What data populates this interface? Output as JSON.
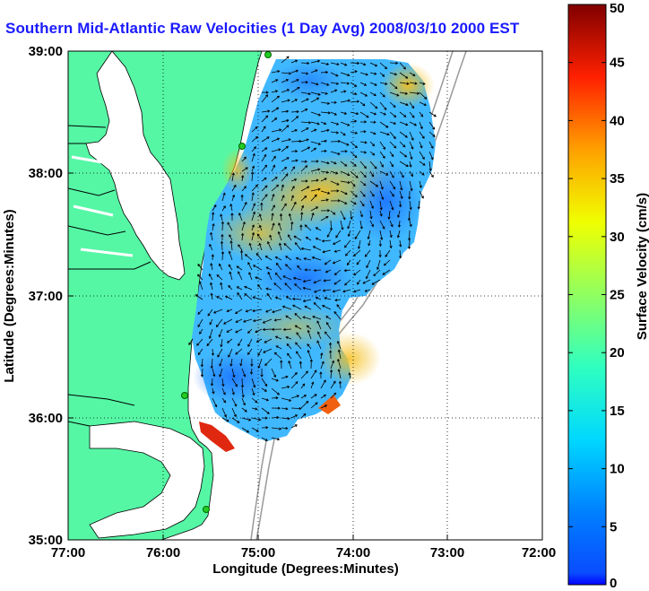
{
  "title": "Southern Mid-Atlantic Raw Velocities (1 Day Avg) 2008/03/10 2000 EST",
  "map": {
    "xlabel": "Longitude (Degrees:Minutes)",
    "ylabel": "Latitude (Degrees:Minutes)",
    "x_ticks": [
      "77:00",
      "76:00",
      "75:00",
      "74:00",
      "73:00",
      "72:00"
    ],
    "y_ticks": [
      "39:00",
      "38:00",
      "37:00",
      "36:00",
      "35:00"
    ],
    "land_color": "#55f7a5",
    "grid": "dotted"
  },
  "colorbar": {
    "label": "Surface Velocity (cm/s)",
    "ticks": [
      "50",
      "45",
      "40",
      "35",
      "30",
      "25",
      "20",
      "15",
      "10",
      "5",
      "0"
    ],
    "min": 0,
    "max": 50,
    "colormap": "jet"
  },
  "legend_icons": [
    "hf-radar-site-icon"
  ]
}
